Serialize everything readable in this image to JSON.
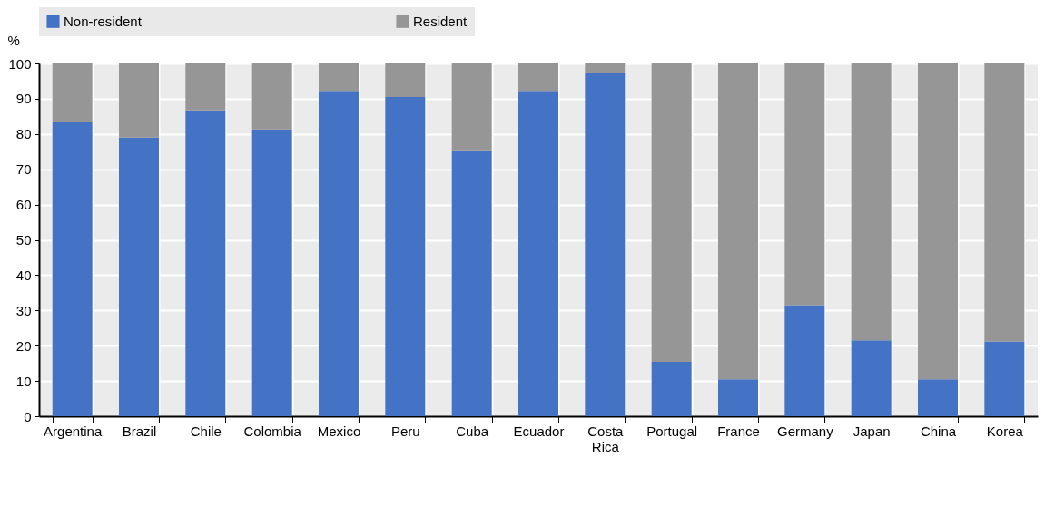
{
  "chart_data": {
    "type": "bar",
    "stacked": true,
    "ylabel": "%",
    "categories": [
      "Argentina",
      "Brazil",
      "Chile",
      "Colombia",
      "Mexico",
      "Peru",
      "Cuba",
      "Ecuador",
      "Costa Rica",
      "Portugal",
      "France",
      "Germany",
      "Japan",
      "China",
      "Korea"
    ],
    "series": [
      {
        "name": "Non-resident",
        "color": "#4472c4",
        "values": [
          83.4,
          79.0,
          86.7,
          81.3,
          92.2,
          90.5,
          75.4,
          92.2,
          97.3,
          15.4,
          10.5,
          31.5,
          21.5,
          10.5,
          21.2
        ]
      },
      {
        "name": "Resident",
        "color": "#969696",
        "values": [
          16.6,
          21.0,
          13.3,
          18.7,
          7.8,
          9.5,
          24.6,
          7.8,
          2.7,
          84.6,
          89.5,
          68.5,
          78.5,
          89.5,
          78.8
        ]
      }
    ],
    "ylim": [
      0,
      100
    ],
    "yticks": [
      0,
      10,
      20,
      30,
      40,
      50,
      60,
      70,
      80,
      90,
      100
    ],
    "grid": true,
    "legend": "top"
  }
}
